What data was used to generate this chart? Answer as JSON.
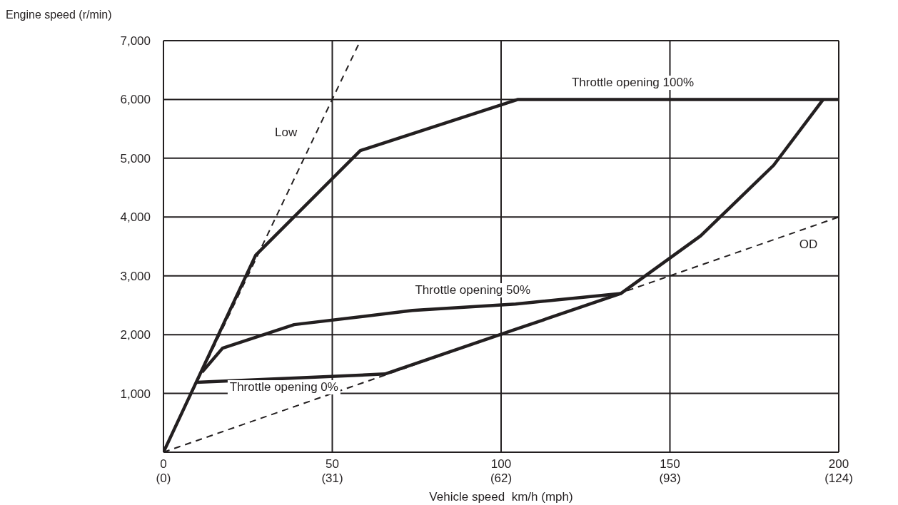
{
  "chart_data": {
    "type": "line",
    "xlabel": "Vehicle speed  km/h (mph)",
    "ylabel": "Engine speed (r/min)",
    "xlim": [
      0,
      200
    ],
    "ylim": [
      0,
      7000
    ],
    "xticks": [
      0,
      50,
      100,
      150,
      200
    ],
    "x2lim": [
      0,
      124
    ],
    "x2ticks": [
      {
        "value": 0,
        "label": "(0)"
      },
      {
        "value": 31,
        "label": "(31)"
      },
      {
        "value": 62,
        "label": "(62)"
      },
      {
        "value": 93,
        "label": "(93)"
      },
      {
        "value": 124,
        "label": "(124)"
      }
    ],
    "yticks": [
      {
        "value": 0,
        "label": null
      },
      {
        "value": 1000,
        "label": "1,000"
      },
      {
        "value": 2000,
        "label": "2,000"
      },
      {
        "value": 3000,
        "label": "3,000"
      },
      {
        "value": 4000,
        "label": "4,000"
      },
      {
        "value": 5000,
        "label": "5,000"
      },
      {
        "value": 6000,
        "label": "6,000"
      },
      {
        "value": 7000,
        "label": "7,000"
      }
    ],
    "grid": true,
    "series": [
      {
        "name": "Low",
        "color": "#231f20",
        "line_style": "dashed",
        "x": [
          0,
          58.3
        ],
        "values": [
          0,
          7000
        ]
      },
      {
        "name": "OD",
        "color": "#231f20",
        "line_style": "dashed",
        "x": [
          0,
          200
        ],
        "values": [
          0,
          4000
        ]
      },
      {
        "name": "Throttle opening 100%",
        "color": "#231f20",
        "line_style": "solid",
        "x": [
          0,
          27.3,
          58.3,
          105,
          200
        ],
        "values": [
          0,
          3350,
          5130,
          6000,
          6000
        ]
      },
      {
        "name": "Throttle opening 50%",
        "color": "#231f20",
        "line_style": "solid",
        "x": [
          11.4,
          17.5,
          38.7,
          73.7,
          104.3,
          135.5,
          159.1,
          180.7,
          195.4
        ],
        "values": [
          1360,
          1770,
          2170,
          2410,
          2520,
          2700,
          3680,
          4880,
          6000
        ]
      },
      {
        "name": "Throttle opening 0%",
        "color": "#231f20",
        "line_style": "solid",
        "x": [
          9.8,
          65.6,
          104.3,
          135.5
        ],
        "values": [
          1190,
          1330,
          2090,
          2700
        ]
      }
    ]
  }
}
